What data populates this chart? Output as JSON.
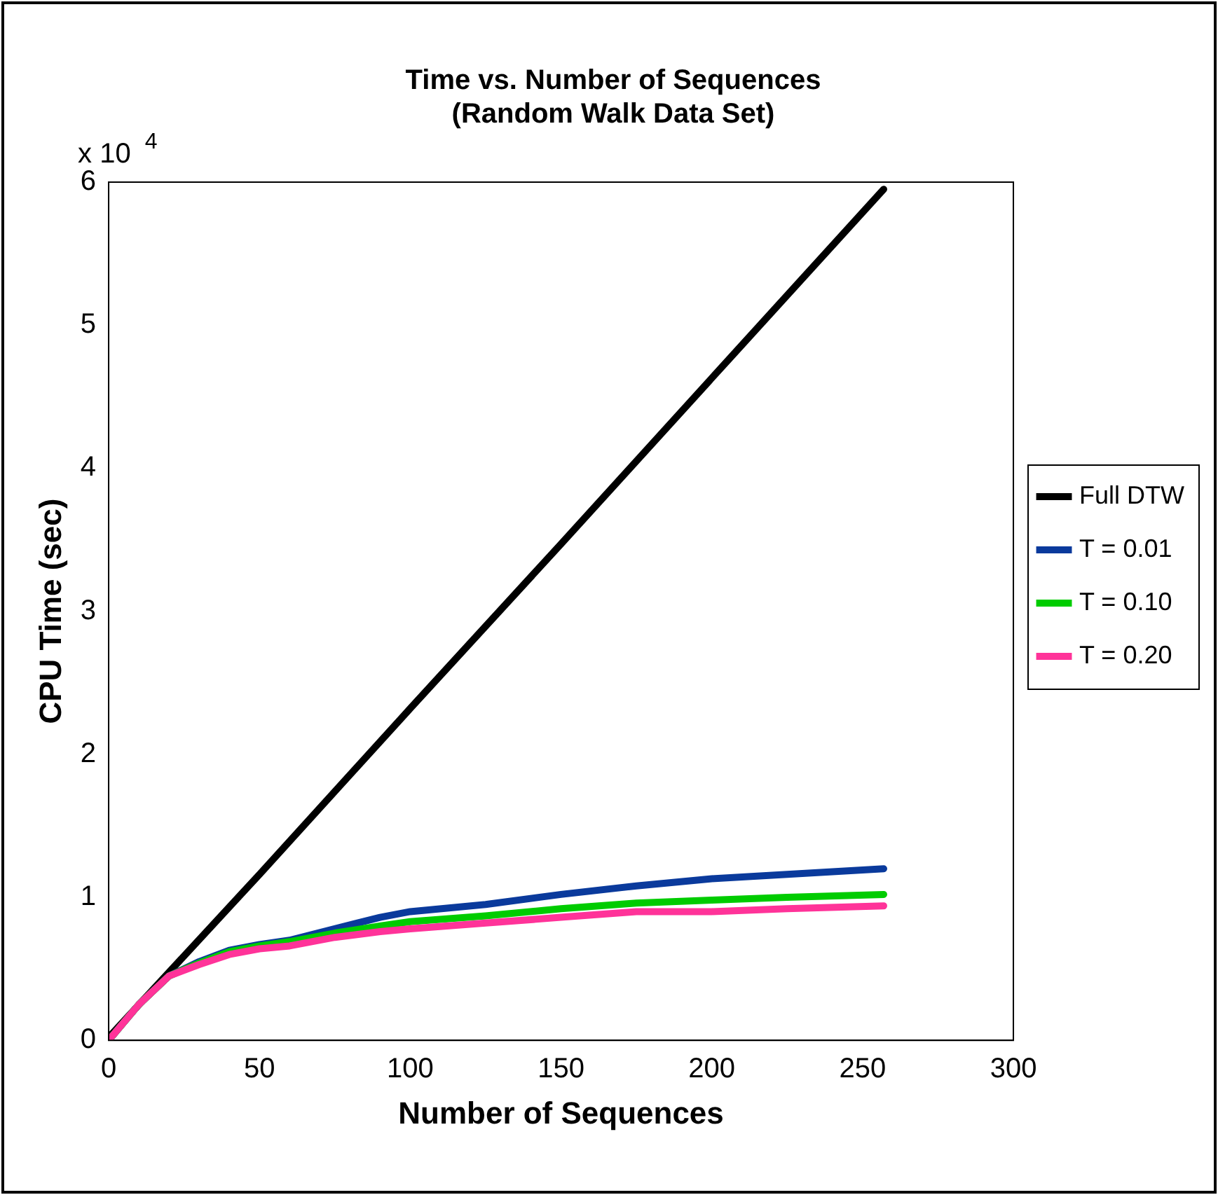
{
  "chart_data": {
    "type": "line",
    "title": [
      "Time vs. Number of Sequences",
      "(Random Walk Data Set)"
    ],
    "xlabel": "Number of Sequences",
    "ylabel": "CPU Time (sec)",
    "annotations": [
      "x 10$^{4}$"
    ],
    "xlim": [
      0,
      300
    ],
    "xticks": [
      0,
      50,
      100,
      150,
      200,
      250,
      300
    ],
    "ylim": [
      0,
      6
    ],
    "yticks": [
      0,
      1,
      2,
      3,
      4,
      5,
      6
    ],
    "grid": false,
    "legend": "right",
    "marker": "none",
    "line_style": "solid",
    "series": [
      {
        "name": "Full DTW",
        "color": "#000000",
        "x": [
          0,
          50,
          100,
          150,
          200,
          257
        ],
        "values": [
          0.02,
          1.16,
          2.32,
          3.47,
          4.63,
          5.95
        ]
      },
      {
        "name": "T = 0.01",
        "color": "#0a3a9c",
        "x": [
          0,
          10,
          20,
          30,
          40,
          50,
          60,
          75,
          90,
          100,
          125,
          150,
          175,
          200,
          225,
          257
        ],
        "values": [
          0,
          0.25,
          0.45,
          0.55,
          0.63,
          0.67,
          0.7,
          0.78,
          0.86,
          0.9,
          0.95,
          1.02,
          1.08,
          1.13,
          1.16,
          1.2
        ]
      },
      {
        "name": "T = 0.10",
        "color": "#00cc00",
        "x": [
          0,
          10,
          20,
          30,
          40,
          50,
          60,
          75,
          90,
          100,
          125,
          150,
          175,
          200,
          225,
          257
        ],
        "values": [
          0,
          0.25,
          0.45,
          0.54,
          0.62,
          0.66,
          0.69,
          0.75,
          0.8,
          0.83,
          0.87,
          0.92,
          0.96,
          0.98,
          1.0,
          1.02
        ]
      },
      {
        "name": "T = 0.20",
        "color": "#ff3399",
        "x": [
          0,
          10,
          20,
          30,
          40,
          50,
          60,
          75,
          90,
          100,
          125,
          150,
          175,
          200,
          225,
          257
        ],
        "values": [
          0,
          0.25,
          0.45,
          0.53,
          0.6,
          0.64,
          0.66,
          0.72,
          0.76,
          0.78,
          0.82,
          0.86,
          0.9,
          0.9,
          0.92,
          0.94
        ]
      }
    ]
  }
}
